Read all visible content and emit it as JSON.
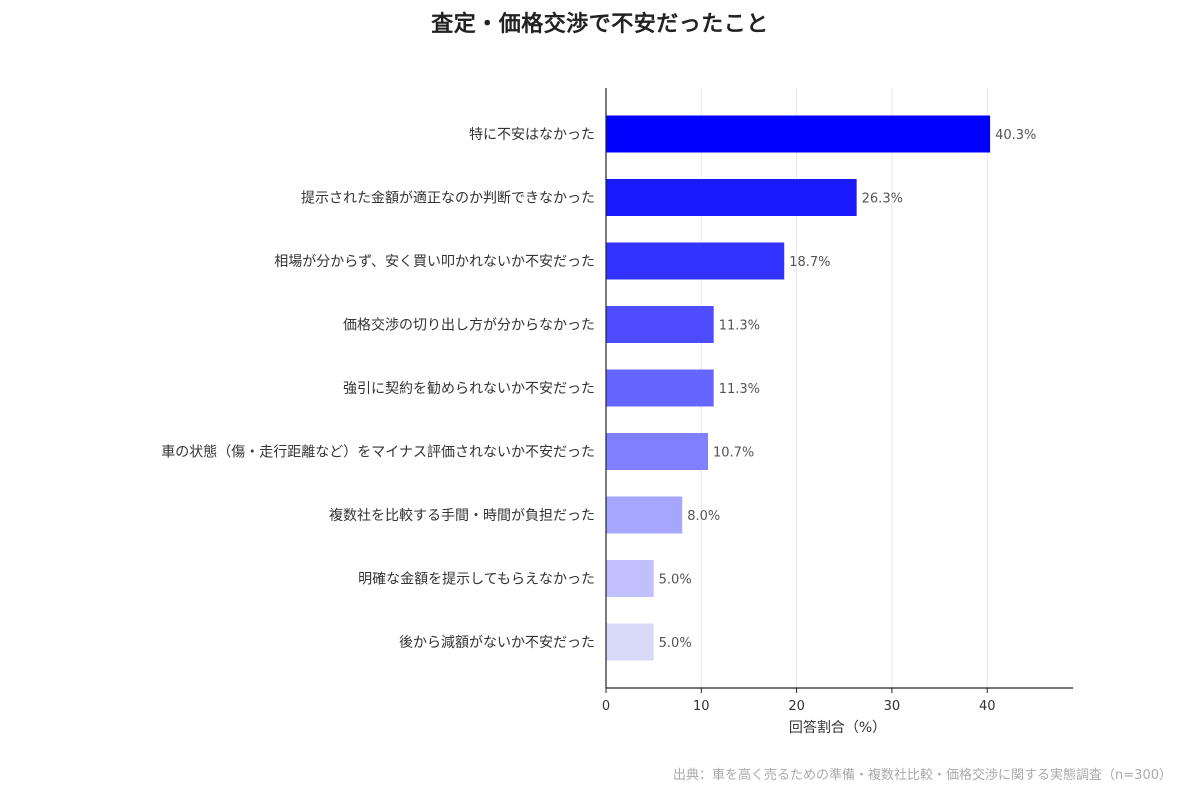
{
  "chart_data": {
    "type": "bar",
    "orientation": "horizontal",
    "title": "査定・価格交渉で不安だったこと",
    "categories": [
      "特に不安はなかった",
      "提示された金額が適正なのか判断できなかった",
      "相場が分からず、安く買い叩かれないか不安だった",
      "価格交渉の切り出し方が分からなかった",
      "強引に契約を勧められないか不安だった",
      "車の状態（傷・走行距離など）をマイナス評価されないか不安だった",
      "複数社を比較する手間・時間が負担だった",
      "明確な金額を提示してもらえなかった",
      "後から減額がないか不安だった"
    ],
    "values": [
      40.3,
      26.3,
      18.7,
      11.3,
      11.3,
      10.7,
      8.0,
      5.0,
      5.0
    ],
    "value_labels": [
      "40.3%",
      "26.3%",
      "18.7%",
      "11.3%",
      "11.3%",
      "10.7%",
      "8.0%",
      "5.0%",
      "5.0%"
    ],
    "bar_colors": [
      "#0000ff",
      "#1a1aff",
      "#3333ff",
      "#4d4dff",
      "#6666ff",
      "#8080ff",
      "#a6a6ff",
      "#c0c0ff",
      "#d9d9f8"
    ],
    "xlabel": "回答割合（%）",
    "ylabel": "",
    "xlim": [
      0,
      49
    ],
    "xticks": [
      0,
      10,
      20,
      30,
      40
    ],
    "grid": true,
    "source": "出典：車を高く売るための準備・複数社比較・価格交渉に関する実態調査（n=300）"
  }
}
